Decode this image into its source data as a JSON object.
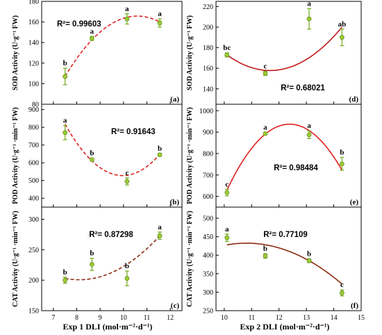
{
  "colors": {
    "fit_red": "#e02020",
    "fit_darkred": "#c01818",
    "fit_brown": "#8b2a10",
    "point": "#9acd32",
    "errorbar": "#7ab02a"
  },
  "axes_labels": {
    "x_left": "Exp 1  DLI (mol·m⁻²·d⁻¹)",
    "x_right": "Exp 2  DLI (mol·m⁻²·d⁻¹)"
  },
  "chart_data": [
    {
      "id": "a",
      "type": "scatter",
      "panel_label": "(a)",
      "ylabel": "SOD Activity (U·g⁻¹ FW)",
      "xlim": [
        6.5,
        12.5
      ],
      "ylim": [
        80,
        180
      ],
      "xticks": [
        7,
        8,
        9,
        10,
        11,
        12
      ],
      "yticks": [
        80,
        100,
        120,
        140,
        160,
        180
      ],
      "show_x_ticklabels": false,
      "x": [
        7.5,
        8.65,
        10.15,
        11.55
      ],
      "y": [
        107,
        144,
        163,
        159
      ],
      "err": [
        8,
        2,
        5,
        4
      ],
      "letters": [
        "b",
        "a",
        "a",
        "a"
      ],
      "fit": {
        "type": "quadratic",
        "style": "dashed",
        "color": "#e02020",
        "points": [
          [
            7.5,
            107
          ],
          [
            10.4,
            165.5
          ],
          [
            11.55,
            160
          ]
        ]
      },
      "r2": "R²= 0.99603",
      "r2_pos": "top-left"
    },
    {
      "id": "b",
      "type": "scatter",
      "panel_label": "(b)",
      "ylabel": "POD Activity (U·g⁻¹ ·min⁻¹ FW)",
      "xlim": [
        6.5,
        12.5
      ],
      "ylim": [
        350,
        930
      ],
      "xticks": [
        7,
        8,
        9,
        10,
        11,
        12
      ],
      "yticks": [
        400,
        500,
        600,
        700,
        800,
        900
      ],
      "show_x_ticklabels": false,
      "x": [
        7.5,
        8.65,
        10.15,
        11.55
      ],
      "y": [
        770,
        618,
        495,
        645
      ],
      "err": [
        40,
        8,
        20,
        7
      ],
      "letters": [
        "a",
        "b",
        "c",
        "b"
      ],
      "fit": {
        "type": "quadratic",
        "style": "dashed",
        "color": "#e02020",
        "points": [
          [
            7.5,
            818
          ],
          [
            9.9,
            528
          ],
          [
            11.55,
            648
          ]
        ]
      },
      "r2": "R²= 0.91643",
      "r2_pos": "top-right"
    },
    {
      "id": "c",
      "type": "scatter",
      "panel_label": "(c)",
      "ylabel": "CAT Activity (U·g⁻¹ ·min⁻¹ FW)",
      "xlim": [
        6.5,
        12.5
      ],
      "ylim": [
        150,
        320
      ],
      "xticks": [
        7,
        8,
        9,
        10,
        11,
        12
      ],
      "yticks": [
        150,
        200,
        250,
        300
      ],
      "show_x_ticklabels": true,
      "x": [
        7.5,
        8.65,
        10.15,
        11.55
      ],
      "y": [
        200,
        226,
        203,
        273
      ],
      "err": [
        5,
        10,
        12,
        6
      ],
      "letters": [
        "b",
        "b",
        "b",
        "a"
      ],
      "fit": {
        "type": "quadratic",
        "style": "dashed",
        "color": "#8b2a10",
        "points": [
          [
            7.5,
            203
          ],
          [
            8.3,
            201
          ],
          [
            11.55,
            273
          ]
        ]
      },
      "r2": "R²= 0.87298",
      "r2_pos": "top-middle"
    },
    {
      "id": "d",
      "type": "scatter",
      "panel_label": "(d)",
      "ylabel": "SOD Activity (U·g⁻¹ FW)",
      "xlim": [
        9.7,
        15
      ],
      "ylim": [
        125,
        225
      ],
      "xticks": [
        10,
        11,
        12,
        13,
        14,
        15
      ],
      "yticks": [
        140,
        160,
        180,
        200,
        220
      ],
      "show_x_ticklabels": false,
      "x": [
        10.1,
        11.5,
        13.1,
        14.3
      ],
      "y": [
        173,
        155,
        208,
        190
      ],
      "err": [
        2,
        2,
        10,
        8
      ],
      "letters": [
        "bc",
        "c",
        "a",
        "ab"
      ],
      "fit": {
        "type": "quadratic",
        "style": "solid",
        "color": "#c01818",
        "points": [
          [
            10.1,
            173
          ],
          [
            11.5,
            158
          ],
          [
            14.3,
            200
          ]
        ]
      },
      "r2": "R²= 0.68021",
      "r2_pos": "bottom-middle"
    },
    {
      "id": "e",
      "type": "scatter",
      "panel_label": "(e)",
      "ylabel": "POD Activity (U·g⁻¹ ·min⁻¹ FW)",
      "xlim": [
        9.7,
        15
      ],
      "ylim": [
        550,
        1030
      ],
      "xticks": [
        10,
        11,
        12,
        13,
        14,
        15
      ],
      "yticks": [
        600,
        700,
        800,
        900,
        1000
      ],
      "show_x_ticklabels": false,
      "x": [
        10.1,
        11.5,
        13.1,
        14.3
      ],
      "y": [
        618,
        893,
        888,
        752
      ],
      "err": [
        15,
        5,
        18,
        30
      ],
      "letters": [
        "c",
        "a",
        "a",
        "b"
      ],
      "fit": {
        "type": "quadratic",
        "style": "solid",
        "color": "#e02020",
        "points": [
          [
            10.1,
            630
          ],
          [
            12.35,
            937
          ],
          [
            14.3,
            722
          ]
        ]
      },
      "r2": "R²= 0.98484",
      "r2_pos": "middle"
    },
    {
      "id": "f",
      "type": "scatter",
      "panel_label": "(f)",
      "ylabel": "CAT Activity (U·g⁻¹ ·min⁻¹ FW)",
      "xlim": [
        9.7,
        15
      ],
      "ylim": [
        250,
        530
      ],
      "xticks": [
        10,
        11,
        12,
        13,
        14,
        15
      ],
      "yticks": [
        250,
        300,
        350,
        400,
        450,
        500
      ],
      "show_x_ticklabels": true,
      "x": [
        10.1,
        11.5,
        13.1,
        14.3
      ],
      "y": [
        447,
        398,
        385,
        298
      ],
      "err": [
        10,
        6,
        5,
        8
      ],
      "letters": [
        "a",
        "b",
        "b",
        "c"
      ],
      "fit": {
        "type": "quadratic",
        "style": "solid",
        "color": "#8b2a10",
        "points": [
          [
            10.1,
            428
          ],
          [
            12.2,
            415
          ],
          [
            14.3,
            322
          ]
        ]
      },
      "r2": "R²= 0.77109",
      "r2_pos": "top-middle"
    }
  ]
}
